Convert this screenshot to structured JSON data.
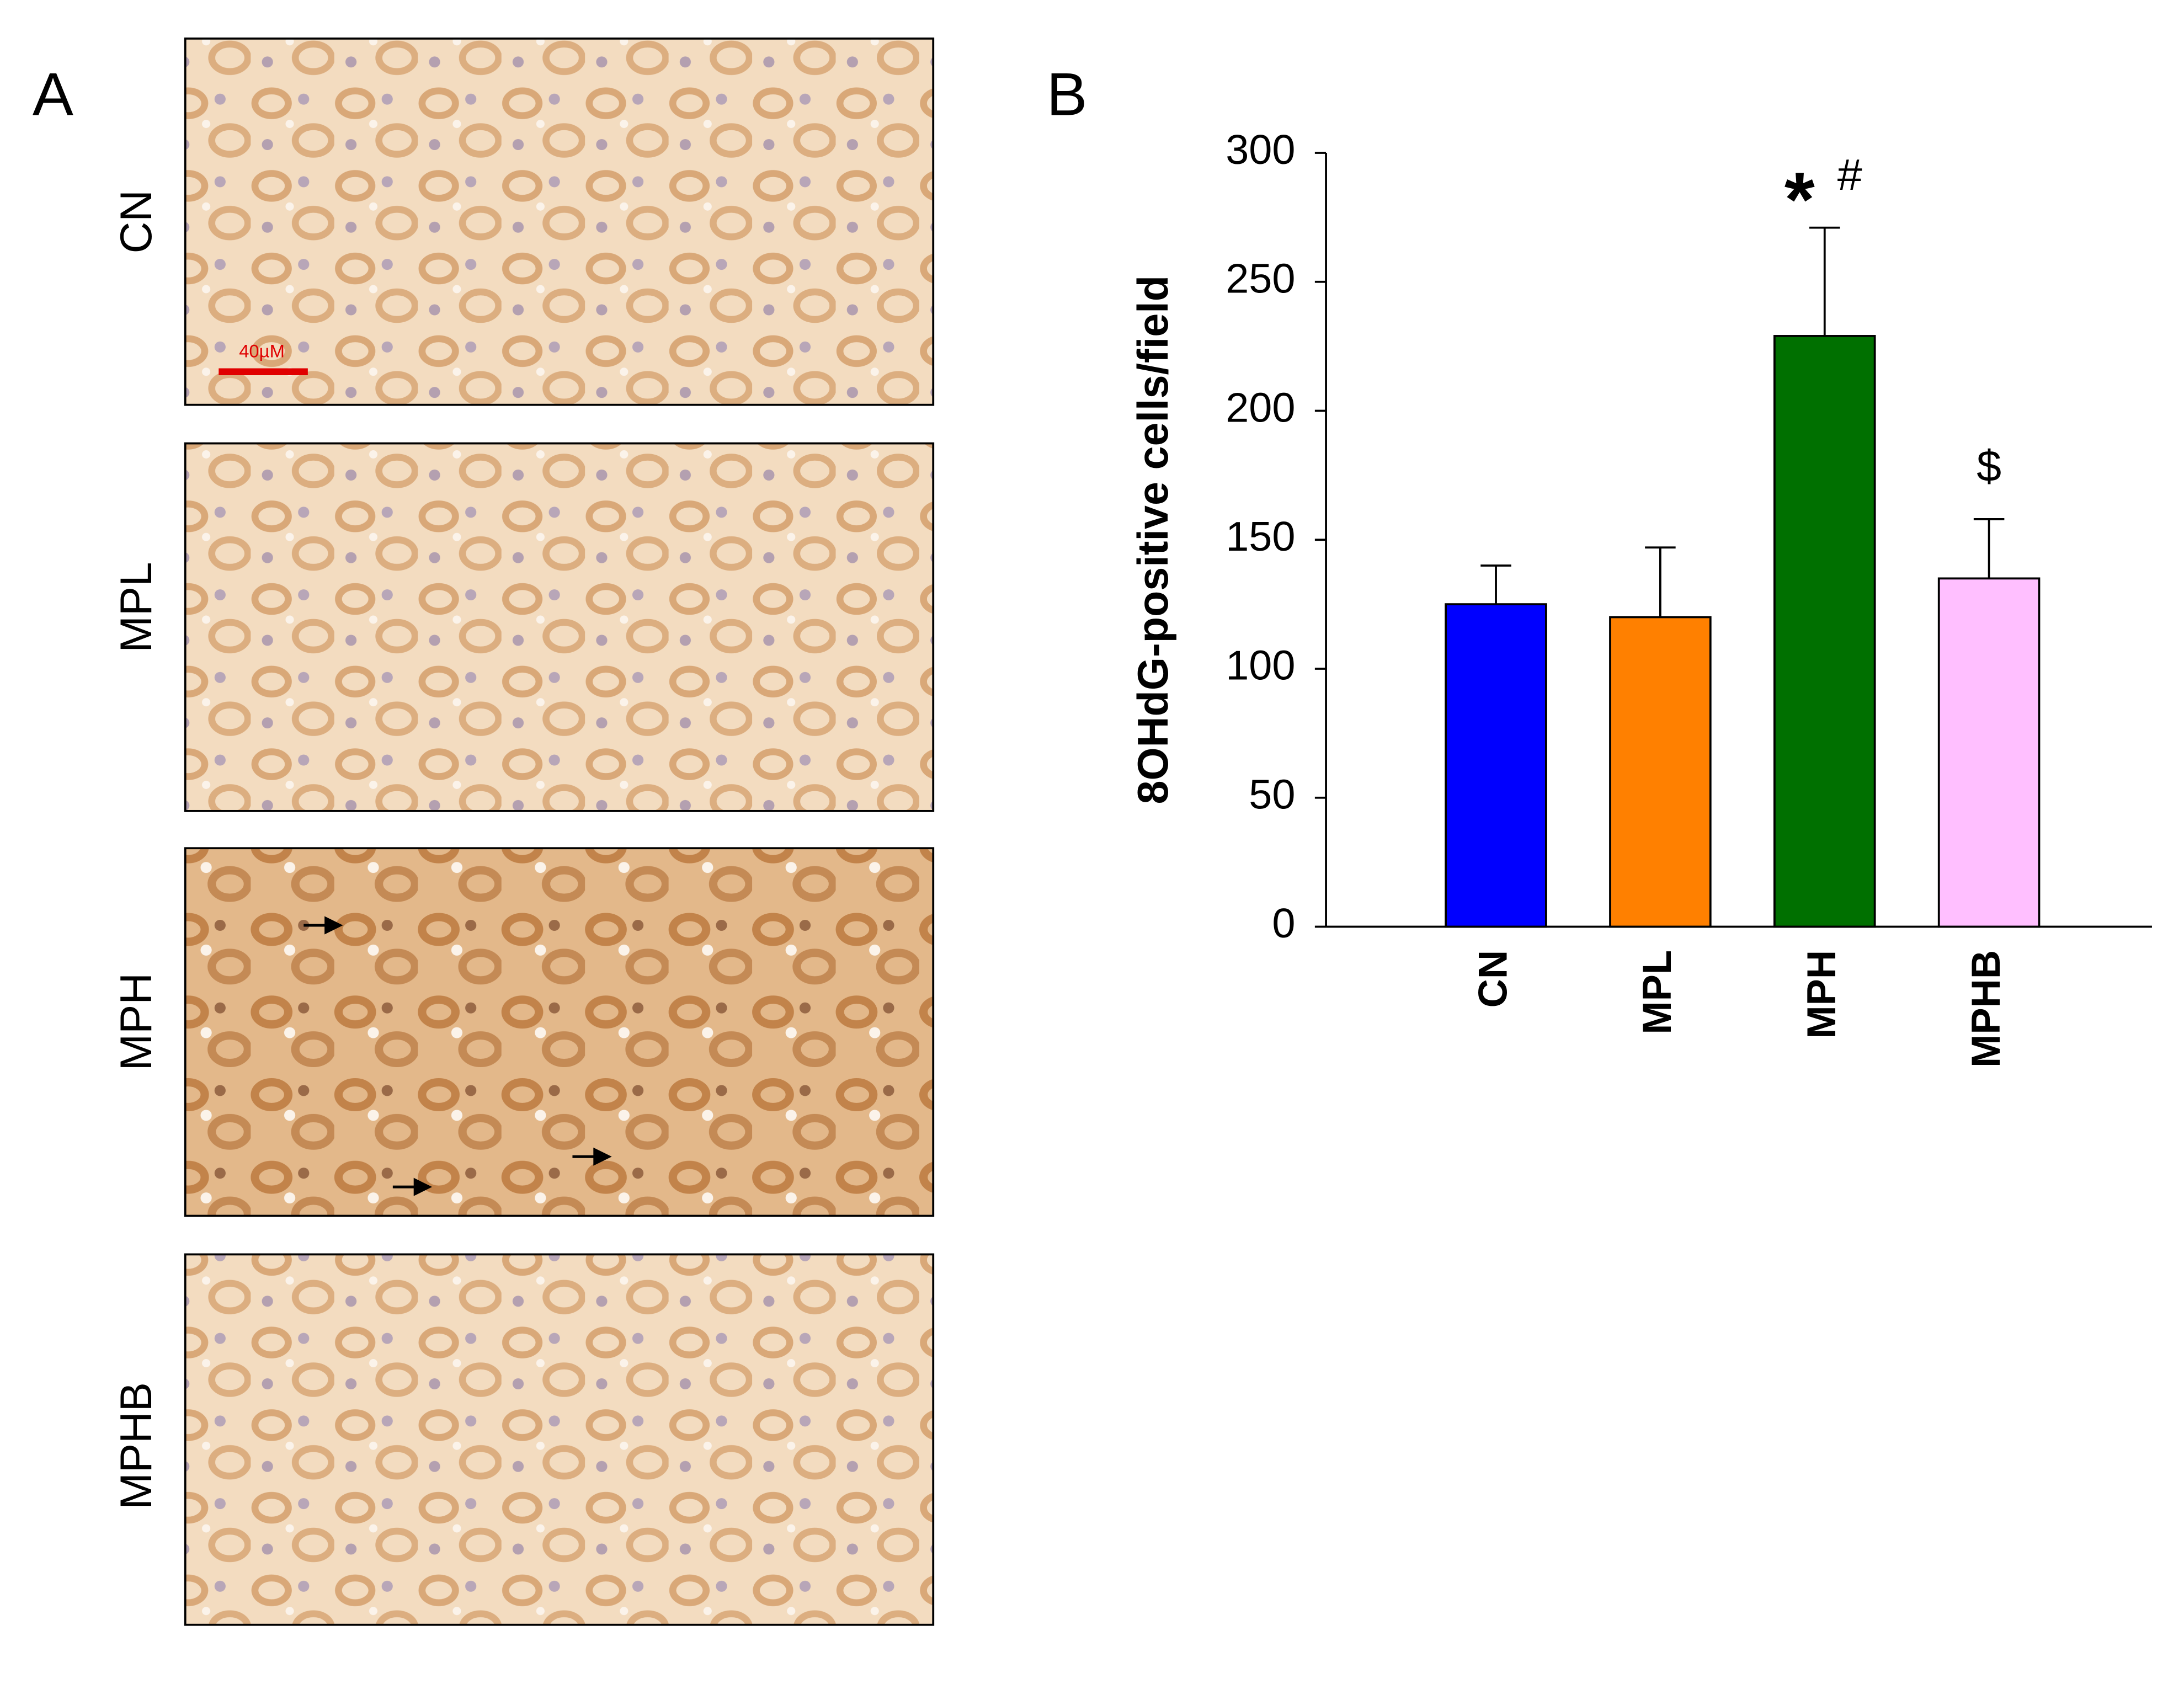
{
  "panel_a": {
    "label": "A",
    "scale_bar": "40µM",
    "images": [
      {
        "label": "CN"
      },
      {
        "label": "MPL"
      },
      {
        "label": "MPH"
      },
      {
        "label": "MPHB"
      }
    ]
  },
  "chart_data": {
    "type": "bar",
    "panel_label": "B",
    "y_label": "8OHdG-positive cells/field",
    "categories": [
      "CN",
      "MPL",
      "MPH",
      "MPHB"
    ],
    "values": [
      125,
      120,
      229,
      135
    ],
    "errors": [
      15,
      27,
      42,
      23
    ],
    "colors": [
      "#0000ff",
      "#ff8000",
      "#007000",
      "#ffbfff"
    ],
    "ylim": [
      0,
      300
    ],
    "yticks": [
      0,
      50,
      100,
      150,
      200,
      250,
      300
    ],
    "annotations": [
      {
        "category": "MPH",
        "text": "*"
      },
      {
        "category": "MPH",
        "text": "#"
      },
      {
        "category": "MPHB",
        "text": "$"
      }
    ]
  }
}
